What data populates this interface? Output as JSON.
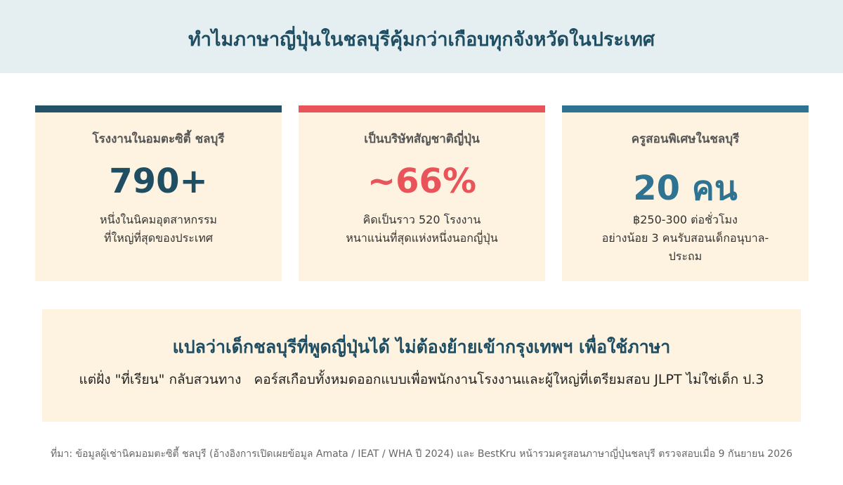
{
  "header": {
    "title": "ทำไมภาษาญี่ปุ่นในชลบุรีคุ้มกว่าเกือบทุกจังหวัดในประเทศ"
  },
  "cards": [
    {
      "label": "โรงงานในอมตะซิตี้ ชลบุรี",
      "stat": "790+",
      "lines": [
        "หนึ่งในนิคมอุตสาหกรรม",
        "ที่ใหญ่ที่สุดของประเทศ"
      ]
    },
    {
      "label": "เป็นบริษัทสัญชาติญี่ปุ่น",
      "stat": "~66%",
      "lines": [
        "คิดเป็นราว 520 โรงงาน",
        "หนาแน่นที่สุดแห่งหนึ่งนอกญี่ปุ่น"
      ]
    },
    {
      "label": "ครูสอนพิเศษในชลบุรี",
      "stat": "20 คน",
      "lines": [
        "฿250-300 ต่อชั่วโมง",
        "อย่างน้อย 3 คนรับสอนเด็กอนุบาล-ประถม"
      ]
    }
  ],
  "callout": {
    "heading": "แปลว่าเด็กชลบุรีที่พูดญี่ปุ่นได้ ไม่ต้องย้ายเข้ากรุงเทพฯ เพื่อใช้ภาษา",
    "body": "แต่ฝั่ง \"ที่เรียน\" กลับสวนทาง   คอร์สเกือบทั้งหมดออกแบบเพื่อพนักงานโรงงานและผู้ใหญ่ที่เตรียมสอบ JLPT ไม่ใช่เด็ก ป.3"
  },
  "source": "ที่มา: ข้อมูลผู้เช่านิคมอมตะซิตี้ ชลบุรี (อ้างอิงการเปิดเผยข้อมูล Amata / IEAT / WHA ปี 2024) และ BestKru หน้ารวมครูสอนภาษาญี่ปุ่นชลบุรี ตรวจสอบเมื่อ 9 กันยายน 2026"
}
